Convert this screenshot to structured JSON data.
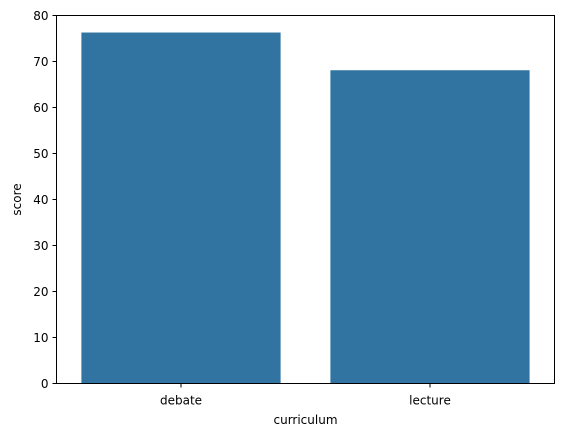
{
  "chart_data": {
    "type": "bar",
    "categories": [
      "debate",
      "lecture"
    ],
    "series": [
      {
        "values": [
          76.3,
          68.1
        ]
      }
    ],
    "title": "",
    "xlabel": "curriculum",
    "ylabel": "score",
    "ylim": [
      0,
      80
    ],
    "yticks": [
      0,
      10,
      20,
      30,
      40,
      50,
      60,
      70,
      80
    ],
    "grid": false,
    "legend": "none",
    "bar_color": "#3274a1"
  }
}
